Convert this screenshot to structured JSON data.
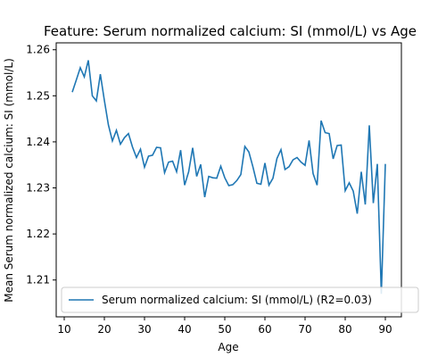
{
  "chart_data": {
    "type": "line",
    "title": "Feature: Serum normalized calcium:  SI (mmol/L) vs Age",
    "xlabel": "Age",
    "ylabel": "Mean Serum normalized calcium:  SI (mmol/L)",
    "xlim": [
      8,
      94
    ],
    "ylim": [
      1.202,
      1.2615
    ],
    "xticks": [
      10,
      20,
      30,
      40,
      50,
      60,
      70,
      80,
      90
    ],
    "yticks": [
      1.21,
      1.22,
      1.23,
      1.24,
      1.25,
      1.26
    ],
    "grid": false,
    "legend_position": "lower-left",
    "series": [
      {
        "name": "Serum normalized calcium:  SI (mmol/L) (R2=0.03)",
        "color": "#1f77b4",
        "x": [
          12,
          13,
          14,
          15,
          16,
          17,
          18,
          19,
          20,
          21,
          22,
          23,
          24,
          25,
          26,
          27,
          28,
          29,
          30,
          31,
          32,
          33,
          34,
          35,
          36,
          37,
          38,
          39,
          40,
          41,
          42,
          43,
          44,
          45,
          46,
          47,
          48,
          49,
          50,
          51,
          52,
          53,
          54,
          55,
          56,
          57,
          58,
          59,
          60,
          61,
          62,
          63,
          64,
          65,
          66,
          67,
          68,
          69,
          70,
          71,
          72,
          73,
          74,
          75,
          76,
          77,
          78,
          79,
          80,
          81,
          82,
          83,
          84,
          85,
          86,
          87,
          88,
          89,
          90
        ],
        "y": [
          1.2508,
          1.2534,
          1.2561,
          1.2541,
          1.2577,
          1.25,
          1.2489,
          1.2547,
          1.249,
          1.2437,
          1.2402,
          1.2425,
          1.2395,
          1.2409,
          1.2418,
          1.2389,
          1.2366,
          1.2384,
          1.2345,
          1.2369,
          1.2371,
          1.2388,
          1.2387,
          1.2333,
          1.2356,
          1.2358,
          1.2335,
          1.2382,
          1.2306,
          1.2335,
          1.2387,
          1.2325,
          1.2351,
          1.228,
          1.2325,
          1.2322,
          1.2321,
          1.2347,
          1.2322,
          1.2305,
          1.2307,
          1.2316,
          1.2329,
          1.239,
          1.2378,
          1.2346,
          1.231,
          1.2308,
          1.2354,
          1.2306,
          1.2321,
          1.2364,
          1.2383,
          1.234,
          1.2346,
          1.2361,
          1.2366,
          1.2356,
          1.2349,
          1.2403,
          1.2331,
          1.2306,
          1.2446,
          1.242,
          1.2418,
          1.2363,
          1.2392,
          1.2393,
          1.2294,
          1.2311,
          1.2293,
          1.2244,
          1.2335,
          1.2264,
          1.2436,
          1.2267,
          1.2352,
          1.207,
          1.2352
        ]
      }
    ]
  }
}
